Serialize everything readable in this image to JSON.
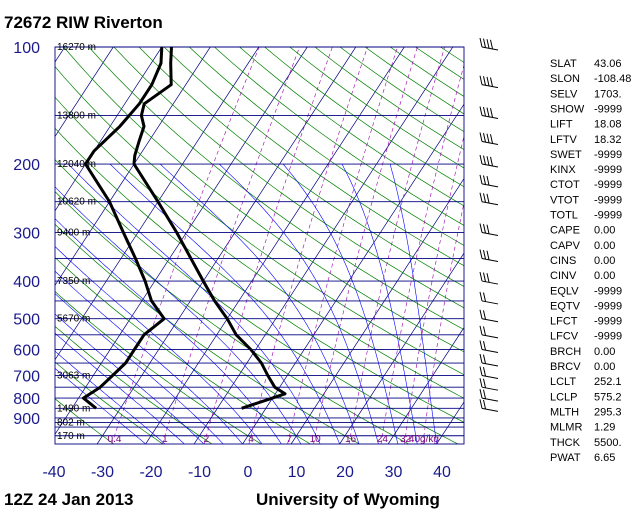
{
  "header": {
    "station": "72672 RIW Riverton",
    "time": "12Z 24 Jan 2013",
    "source": "University of Wyoming"
  },
  "colors": {
    "isobar": "#000080",
    "isotherm": "#000080",
    "dry_adiabat": "#008000",
    "moist_adiabat": "#0000ff",
    "mixing_ratio": "#9900aa",
    "profile": "#000000",
    "labels": "#1a1a8c"
  },
  "chart_data": {
    "type": "skew-t",
    "x_axis": {
      "label": "",
      "ticks": [
        -40,
        -30,
        -20,
        -10,
        0,
        10,
        20,
        30,
        40
      ]
    },
    "y_axis": {
      "label": "",
      "pressure_ticks": [
        100,
        200,
        300,
        400,
        500,
        600,
        700,
        800,
        900
      ]
    },
    "isobars_hPa": [
      100,
      150,
      200,
      250,
      300,
      350,
      400,
      450,
      500,
      550,
      600,
      650,
      700,
      750,
      800,
      850,
      900,
      925,
      950,
      1000
    ],
    "height_labels": [
      {
        "p": 100,
        "text": "16270 m"
      },
      {
        "p": 150,
        "text": "13800 m"
      },
      {
        "p": 200,
        "text": "12040 m"
      },
      {
        "p": 250,
        "text": "10620 m"
      },
      {
        "p": 300,
        "text": "9400 m"
      },
      {
        "p": 400,
        "text": "7350 m"
      },
      {
        "p": 500,
        "text": "5670 m"
      },
      {
        "p": 700,
        "text": "3063 m"
      },
      {
        "p": 850,
        "text": "1490 m"
      },
      {
        "p": 925,
        "text": "802 m"
      },
      {
        "p": 1000,
        "text": "170 m"
      }
    ],
    "mixing_ratio_labels": [
      "0.4",
      "1",
      "2",
      "4",
      "7",
      "10",
      "16",
      "24",
      "32",
      "40g/kg"
    ],
    "series": [
      {
        "key": "temperature",
        "points": [
          {
            "p": 100,
            "t": -68
          },
          {
            "p": 110,
            "t": -66
          },
          {
            "p": 125,
            "t": -63
          },
          {
            "p": 140,
            "t": -66
          },
          {
            "p": 150,
            "t": -65
          },
          {
            "p": 160,
            "t": -63
          },
          {
            "p": 175,
            "t": -62
          },
          {
            "p": 190,
            "t": -61
          },
          {
            "p": 200,
            "t": -60
          },
          {
            "p": 250,
            "t": -50
          },
          {
            "p": 300,
            "t": -42
          },
          {
            "p": 400,
            "t": -30
          },
          {
            "p": 450,
            "t": -25
          },
          {
            "p": 500,
            "t": -20
          },
          {
            "p": 550,
            "t": -16
          },
          {
            "p": 600,
            "t": -11
          },
          {
            "p": 650,
            "t": -7
          },
          {
            "p": 700,
            "t": -4
          },
          {
            "p": 750,
            "t": -1
          },
          {
            "p": 780,
            "t": 2
          },
          {
            "p": 800,
            "t": 0
          },
          {
            "p": 850,
            "t": -5
          }
        ]
      },
      {
        "key": "dewpoint",
        "points": [
          {
            "p": 100,
            "t": -70
          },
          {
            "p": 110,
            "t": -68
          },
          {
            "p": 125,
            "t": -67
          },
          {
            "p": 140,
            "t": -67
          },
          {
            "p": 160,
            "t": -68
          },
          {
            "p": 185,
            "t": -70
          },
          {
            "p": 200,
            "t": -70
          },
          {
            "p": 250,
            "t": -60
          },
          {
            "p": 300,
            "t": -53
          },
          {
            "p": 350,
            "t": -47
          },
          {
            "p": 400,
            "t": -42
          },
          {
            "p": 450,
            "t": -38
          },
          {
            "p": 500,
            "t": -33
          },
          {
            "p": 550,
            "t": -35
          },
          {
            "p": 600,
            "t": -35
          },
          {
            "p": 650,
            "t": -35
          },
          {
            "p": 700,
            "t": -36
          },
          {
            "p": 750,
            "t": -37
          },
          {
            "p": 800,
            "t": -39
          },
          {
            "p": 850,
            "t": -35
          }
        ]
      }
    ],
    "wind_barb_pressures": [
      100,
      125,
      150,
      175,
      200,
      225,
      250,
      300,
      350,
      400,
      450,
      500,
      550,
      600,
      650,
      700,
      750,
      800,
      850
    ],
    "indices": [
      {
        "name": "SLAT",
        "value": "43.06"
      },
      {
        "name": "SLON",
        "value": "-108.48"
      },
      {
        "name": "SELV",
        "value": "1703."
      },
      {
        "name": "SHOW",
        "value": "-9999"
      },
      {
        "name": "LIFT",
        "value": "18.08"
      },
      {
        "name": "LFTV",
        "value": "18.32"
      },
      {
        "name": "SWET",
        "value": "-9999"
      },
      {
        "name": "KINX",
        "value": "-9999"
      },
      {
        "name": "CTOT",
        "value": "-9999"
      },
      {
        "name": "VTOT",
        "value": "-9999"
      },
      {
        "name": "TOTL",
        "value": "-9999"
      },
      {
        "name": "CAPE",
        "value": "0.00"
      },
      {
        "name": "CAPV",
        "value": "0.00"
      },
      {
        "name": "CINS",
        "value": "0.00"
      },
      {
        "name": "CINV",
        "value": "0.00"
      },
      {
        "name": "EQLV",
        "value": "-9999"
      },
      {
        "name": "EQTV",
        "value": "-9999"
      },
      {
        "name": "LFCT",
        "value": "-9999"
      },
      {
        "name": "LFCV",
        "value": "-9999"
      },
      {
        "name": "BRCH",
        "value": "0.00"
      },
      {
        "name": "BRCV",
        "value": "0.00"
      },
      {
        "name": "LCLT",
        "value": "252.1"
      },
      {
        "name": "LCLP",
        "value": "575.2"
      },
      {
        "name": "MLTH",
        "value": "295.3"
      },
      {
        "name": "MLMR",
        "value": "1.29"
      },
      {
        "name": "THCK",
        "value": "5500."
      },
      {
        "name": "PWAT",
        "value": "6.65"
      }
    ]
  }
}
